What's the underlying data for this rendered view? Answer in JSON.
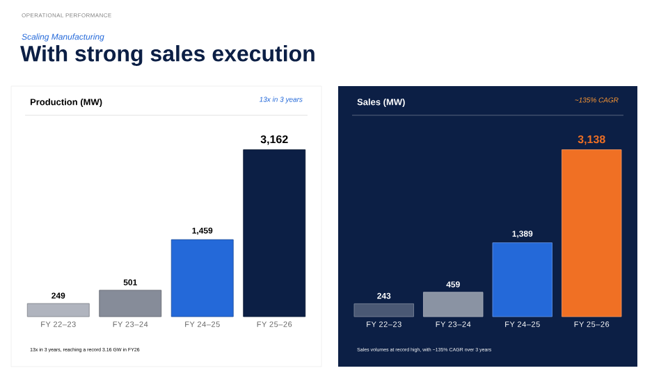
{
  "chart_data": [
    {
      "type": "other",
      "title": "With strong sales execution",
      "subtitle": "Scaling Manufacturing",
      "annotations": [
        "OPERATIONAL PERFORMANCE"
      ]
    },
    {
      "type": "bar",
      "title": "Production (MW)",
      "subtitle": "13x in 3 years",
      "categories": [
        "FY 22–23",
        "FY 23–24",
        "FY 24–25",
        "FY 25–26"
      ],
      "values": [
        249,
        501,
        1459,
        3162
      ],
      "value_labels": [
        "249",
        "501",
        "1,459",
        "3,162"
      ],
      "colors": [
        "#b0b4be",
        "#868c99",
        "#2469d9",
        "#0c1f45"
      ],
      "annotations": [
        "13x in 3 years, reaching a record 3.16 GW in FY26"
      ]
    },
    {
      "type": "bar",
      "title": "Sales (MW)",
      "subtitle": "~135% CAGR",
      "categories": [
        "FY 22–23",
        "FY 23–24",
        "FY 24–25",
        "FY 25–26"
      ],
      "values": [
        243,
        459,
        1389,
        3138
      ],
      "value_labels": [
        "243",
        "459",
        "1,389",
        "3,138"
      ],
      "colors": [
        "#4a5874",
        "#8a93a3",
        "#2469d9",
        "#f07024"
      ],
      "annotations": [
        "Sales volumes at record high, with ~135% CAGR over 3 years"
      ]
    }
  ]
}
